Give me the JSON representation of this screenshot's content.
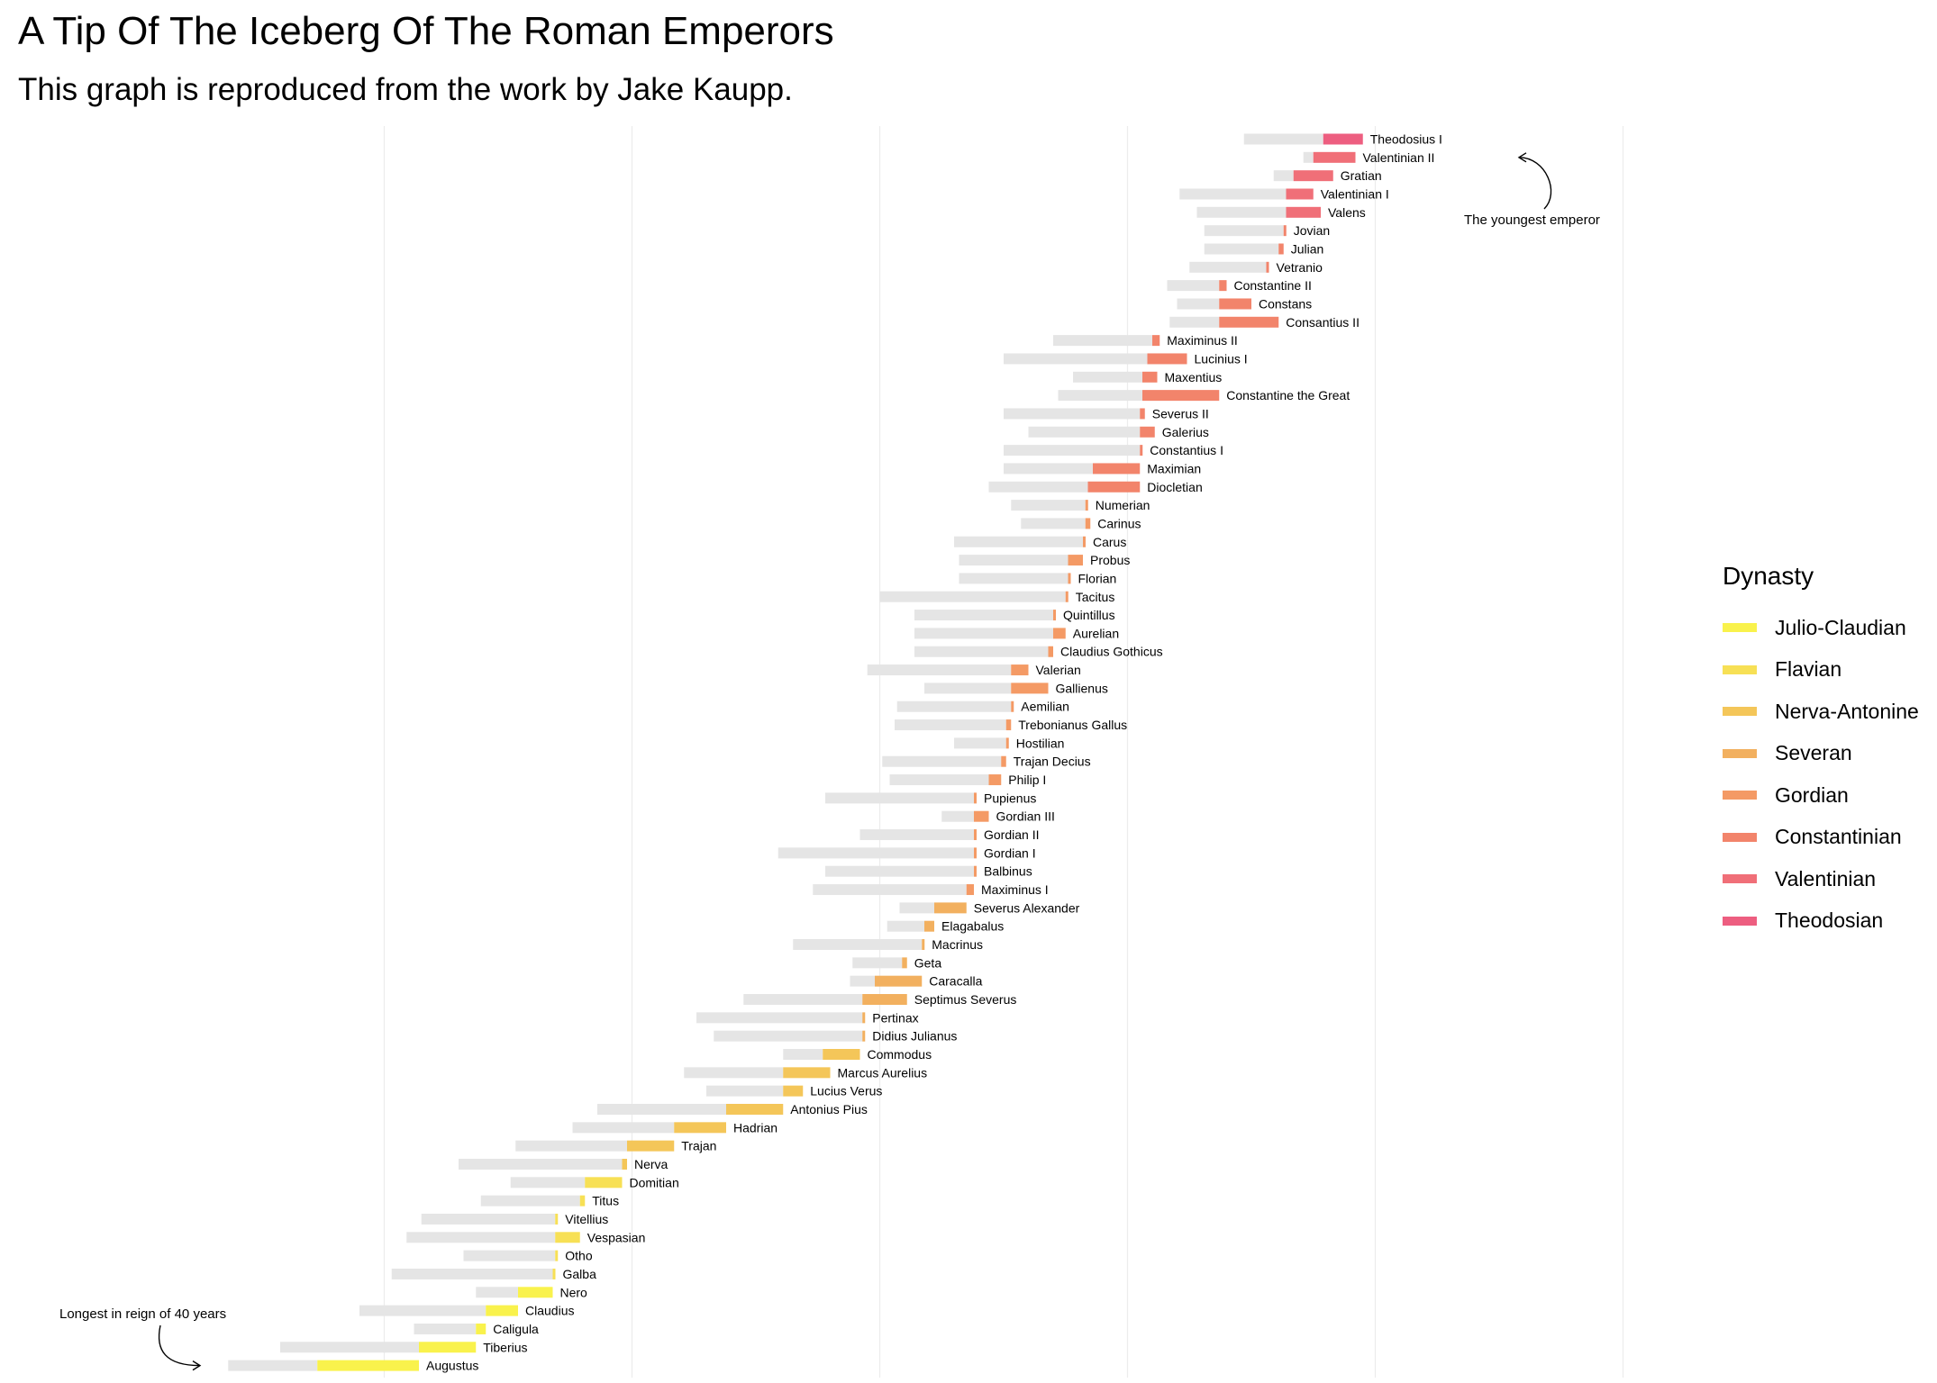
{
  "chart_data": {
    "type": "bar",
    "title": "A Tip Of The Iceberg Of The Roman Emperors",
    "subtitle": "This graph is reproduced from the work by Jake Kaupp.",
    "xlabel": "",
    "ylabel": "",
    "x_unit": "year",
    "xlim": [
      -90,
      510
    ],
    "grid": "vertical gridlines only",
    "legend": {
      "title": "Dynasty",
      "position": "right"
    },
    "dynasties": [
      {
        "name": "Julio-Claudian",
        "color": "#f9f24c"
      },
      {
        "name": "Flavian",
        "color": "#f7e055"
      },
      {
        "name": "Nerva-Antonine",
        "color": "#f4c659"
      },
      {
        "name": "Severan",
        "color": "#f2b05f"
      },
      {
        "name": "Gordian",
        "color": "#f49a65"
      },
      {
        "name": "Constantinian",
        "color": "#f2846b"
      },
      {
        "name": "Valentinian",
        "color": "#f06f78"
      },
      {
        "name": "Theodosian",
        "color": "#ed5e80"
      }
    ],
    "emperors": [
      {
        "name": "Augustus",
        "dynasty": "Julio-Claudian",
        "birth": -63,
        "reign_start": -27,
        "reign_end": 14
      },
      {
        "name": "Tiberius",
        "dynasty": "Julio-Claudian",
        "birth": -42,
        "reign_start": 14,
        "reign_end": 37
      },
      {
        "name": "Caligula",
        "dynasty": "Julio-Claudian",
        "birth": 12,
        "reign_start": 37,
        "reign_end": 41
      },
      {
        "name": "Claudius",
        "dynasty": "Julio-Claudian",
        "birth": -10,
        "reign_start": 41,
        "reign_end": 54
      },
      {
        "name": "Nero",
        "dynasty": "Julio-Claudian",
        "birth": 37,
        "reign_start": 54,
        "reign_end": 68
      },
      {
        "name": "Galba",
        "dynasty": "Flavian",
        "birth": 3,
        "reign_start": 68,
        "reign_end": 69
      },
      {
        "name": "Otho",
        "dynasty": "Flavian",
        "birth": 32,
        "reign_start": 69,
        "reign_end": 69
      },
      {
        "name": "Vespasian",
        "dynasty": "Flavian",
        "birth": 9,
        "reign_start": 69,
        "reign_end": 79
      },
      {
        "name": "Vitellius",
        "dynasty": "Flavian",
        "birth": 15,
        "reign_start": 69,
        "reign_end": 69
      },
      {
        "name": "Titus",
        "dynasty": "Flavian",
        "birth": 39,
        "reign_start": 79,
        "reign_end": 81
      },
      {
        "name": "Domitian",
        "dynasty": "Flavian",
        "birth": 51,
        "reign_start": 81,
        "reign_end": 96
      },
      {
        "name": "Nerva",
        "dynasty": "Nerva-Antonine",
        "birth": 30,
        "reign_start": 96,
        "reign_end": 98
      },
      {
        "name": "Trajan",
        "dynasty": "Nerva-Antonine",
        "birth": 53,
        "reign_start": 98,
        "reign_end": 117
      },
      {
        "name": "Hadrian",
        "dynasty": "Nerva-Antonine",
        "birth": 76,
        "reign_start": 117,
        "reign_end": 138
      },
      {
        "name": "Antonius Pius",
        "dynasty": "Nerva-Antonine",
        "birth": 86,
        "reign_start": 138,
        "reign_end": 161
      },
      {
        "name": "Lucius Verus",
        "dynasty": "Nerva-Antonine",
        "birth": 130,
        "reign_start": 161,
        "reign_end": 169
      },
      {
        "name": "Marcus Aurelius",
        "dynasty": "Nerva-Antonine",
        "birth": 121,
        "reign_start": 161,
        "reign_end": 180
      },
      {
        "name": "Commodus",
        "dynasty": "Nerva-Antonine",
        "birth": 161,
        "reign_start": 177,
        "reign_end": 192
      },
      {
        "name": "Didius Julianus",
        "dynasty": "Severan",
        "birth": 133,
        "reign_start": 193,
        "reign_end": 193
      },
      {
        "name": "Pertinax",
        "dynasty": "Severan",
        "birth": 126,
        "reign_start": 193,
        "reign_end": 193
      },
      {
        "name": "Septimus Severus",
        "dynasty": "Severan",
        "birth": 145,
        "reign_start": 193,
        "reign_end": 211
      },
      {
        "name": "Caracalla",
        "dynasty": "Severan",
        "birth": 188,
        "reign_start": 198,
        "reign_end": 217
      },
      {
        "name": "Geta",
        "dynasty": "Severan",
        "birth": 189,
        "reign_start": 209,
        "reign_end": 211
      },
      {
        "name": "Macrinus",
        "dynasty": "Severan",
        "birth": 165,
        "reign_start": 217,
        "reign_end": 218
      },
      {
        "name": "Elagabalus",
        "dynasty": "Severan",
        "birth": 203,
        "reign_start": 218,
        "reign_end": 222
      },
      {
        "name": "Severus Alexander",
        "dynasty": "Severan",
        "birth": 208,
        "reign_start": 222,
        "reign_end": 235
      },
      {
        "name": "Maximinus I",
        "dynasty": "Gordian",
        "birth": 173,
        "reign_start": 235,
        "reign_end": 238
      },
      {
        "name": "Balbinus",
        "dynasty": "Gordian",
        "birth": 178,
        "reign_start": 238,
        "reign_end": 238
      },
      {
        "name": "Gordian I",
        "dynasty": "Gordian",
        "birth": 159,
        "reign_start": 238,
        "reign_end": 238
      },
      {
        "name": "Gordian II",
        "dynasty": "Gordian",
        "birth": 192,
        "reign_start": 238,
        "reign_end": 238
      },
      {
        "name": "Gordian III",
        "dynasty": "Gordian",
        "birth": 225,
        "reign_start": 238,
        "reign_end": 244
      },
      {
        "name": "Pupienus",
        "dynasty": "Gordian",
        "birth": 178,
        "reign_start": 238,
        "reign_end": 238
      },
      {
        "name": "Philip I",
        "dynasty": "Gordian",
        "birth": 204,
        "reign_start": 244,
        "reign_end": 249
      },
      {
        "name": "Trajan Decius",
        "dynasty": "Gordian",
        "birth": 201,
        "reign_start": 249,
        "reign_end": 251
      },
      {
        "name": "Hostilian",
        "dynasty": "Gordian",
        "birth": 230,
        "reign_start": 251,
        "reign_end": 251
      },
      {
        "name": "Trebonianus Gallus",
        "dynasty": "Gordian",
        "birth": 206,
        "reign_start": 251,
        "reign_end": 253
      },
      {
        "name": "Aemilian",
        "dynasty": "Gordian",
        "birth": 207,
        "reign_start": 253,
        "reign_end": 253
      },
      {
        "name": "Gallienus",
        "dynasty": "Gordian",
        "birth": 218,
        "reign_start": 253,
        "reign_end": 268
      },
      {
        "name": "Valerian",
        "dynasty": "Gordian",
        "birth": 195,
        "reign_start": 253,
        "reign_end": 260
      },
      {
        "name": "Claudius Gothicus",
        "dynasty": "Gordian",
        "birth": 214,
        "reign_start": 268,
        "reign_end": 270
      },
      {
        "name": "Aurelian",
        "dynasty": "Gordian",
        "birth": 214,
        "reign_start": 270,
        "reign_end": 275
      },
      {
        "name": "Quintillus",
        "dynasty": "Gordian",
        "birth": 214,
        "reign_start": 270,
        "reign_end": 270
      },
      {
        "name": "Tacitus",
        "dynasty": "Gordian",
        "birth": 200,
        "reign_start": 275,
        "reign_end": 276
      },
      {
        "name": "Florian",
        "dynasty": "Gordian",
        "birth": 232,
        "reign_start": 276,
        "reign_end": 276
      },
      {
        "name": "Probus",
        "dynasty": "Gordian",
        "birth": 232,
        "reign_start": 276,
        "reign_end": 282
      },
      {
        "name": "Carus",
        "dynasty": "Gordian",
        "birth": 230,
        "reign_start": 282,
        "reign_end": 283
      },
      {
        "name": "Carinus",
        "dynasty": "Gordian",
        "birth": 257,
        "reign_start": 283,
        "reign_end": 285
      },
      {
        "name": "Numerian",
        "dynasty": "Gordian",
        "birth": 253,
        "reign_start": 283,
        "reign_end": 284
      },
      {
        "name": "Diocletian",
        "dynasty": "Constantinian",
        "birth": 244,
        "reign_start": 284,
        "reign_end": 305
      },
      {
        "name": "Maximian",
        "dynasty": "Constantinian",
        "birth": 250,
        "reign_start": 286,
        "reign_end": 305
      },
      {
        "name": "Constantius I",
        "dynasty": "Constantinian",
        "birth": 250,
        "reign_start": 305,
        "reign_end": 306
      },
      {
        "name": "Galerius",
        "dynasty": "Constantinian",
        "birth": 260,
        "reign_start": 305,
        "reign_end": 311
      },
      {
        "name": "Severus II",
        "dynasty": "Constantinian",
        "birth": 250,
        "reign_start": 305,
        "reign_end": 307
      },
      {
        "name": "Constantine the Great",
        "dynasty": "Constantinian",
        "birth": 272,
        "reign_start": 306,
        "reign_end": 337
      },
      {
        "name": "Maxentius",
        "dynasty": "Constantinian",
        "birth": 278,
        "reign_start": 306,
        "reign_end": 312
      },
      {
        "name": "Lucinius I",
        "dynasty": "Constantinian",
        "birth": 250,
        "reign_start": 308,
        "reign_end": 324
      },
      {
        "name": "Maximinus II",
        "dynasty": "Constantinian",
        "birth": 270,
        "reign_start": 310,
        "reign_end": 313
      },
      {
        "name": "Consantius II",
        "dynasty": "Constantinian",
        "birth": 317,
        "reign_start": 337,
        "reign_end": 361
      },
      {
        "name": "Constans",
        "dynasty": "Constantinian",
        "birth": 320,
        "reign_start": 337,
        "reign_end": 350
      },
      {
        "name": "Constantine II",
        "dynasty": "Constantinian",
        "birth": 316,
        "reign_start": 337,
        "reign_end": 340
      },
      {
        "name": "Vetranio",
        "dynasty": "Constantinian",
        "birth": 325,
        "reign_start": 356,
        "reign_end": 356
      },
      {
        "name": "Julian",
        "dynasty": "Constantinian",
        "birth": 331,
        "reign_start": 361,
        "reign_end": 363
      },
      {
        "name": "Jovian",
        "dynasty": "Constantinian",
        "birth": 331,
        "reign_start": 363,
        "reign_end": 364
      },
      {
        "name": "Valens",
        "dynasty": "Valentinian",
        "birth": 328,
        "reign_start": 364,
        "reign_end": 378
      },
      {
        "name": "Valentinian I",
        "dynasty": "Valentinian",
        "birth": 321,
        "reign_start": 364,
        "reign_end": 375
      },
      {
        "name": "Gratian",
        "dynasty": "Valentinian",
        "birth": 359,
        "reign_start": 367,
        "reign_end": 383
      },
      {
        "name": "Valentinian II",
        "dynasty": "Valentinian",
        "birth": 371,
        "reign_start": 375,
        "reign_end": 392
      },
      {
        "name": "Theodosius I",
        "dynasty": "Theodosian",
        "birth": 347,
        "reign_start": 379,
        "reign_end": 395
      }
    ],
    "annotations": [
      {
        "text": "Longest in reign of 40 years",
        "target": "Augustus"
      },
      {
        "text": "The youngest emperor",
        "target": "Valentinian II"
      }
    ]
  }
}
